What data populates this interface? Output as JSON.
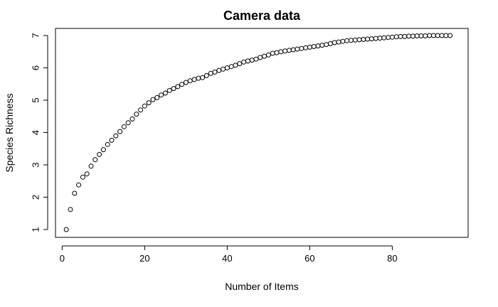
{
  "chart_data": {
    "type": "scatter",
    "title": "Camera data",
    "xlabel": "Number of Items",
    "ylabel": "Species Richness",
    "xlim": [
      0,
      94
    ],
    "ylim": [
      1,
      7
    ],
    "xticks": [
      0,
      20,
      40,
      60,
      80
    ],
    "yticks": [
      1,
      2,
      3,
      4,
      5,
      6,
      7
    ],
    "grid": false,
    "marker": "open-circle",
    "marker_color": "#000000",
    "x": [
      1,
      2,
      3,
      4,
      5,
      6,
      7,
      8,
      9,
      10,
      11,
      12,
      13,
      14,
      15,
      16,
      17,
      18,
      19,
      20,
      21,
      22,
      23,
      24,
      25,
      26,
      27,
      28,
      29,
      30,
      31,
      32,
      33,
      34,
      35,
      36,
      37,
      38,
      39,
      40,
      41,
      42,
      43,
      44,
      45,
      46,
      47,
      48,
      49,
      50,
      51,
      52,
      53,
      54,
      55,
      56,
      57,
      58,
      59,
      60,
      61,
      62,
      63,
      64,
      65,
      66,
      67,
      68,
      69,
      70,
      71,
      72,
      73,
      74,
      75,
      76,
      77,
      78,
      79,
      80,
      81,
      82,
      83,
      84,
      85,
      86,
      87,
      88,
      89,
      90,
      91,
      92,
      93,
      94
    ],
    "y": [
      1.0,
      1.62,
      2.12,
      2.38,
      2.62,
      2.72,
      2.96,
      3.16,
      3.32,
      3.47,
      3.63,
      3.76,
      3.9,
      4.03,
      4.18,
      4.3,
      4.42,
      4.57,
      4.7,
      4.82,
      4.92,
      5.02,
      5.08,
      5.16,
      5.22,
      5.3,
      5.36,
      5.42,
      5.49,
      5.55,
      5.6,
      5.64,
      5.68,
      5.7,
      5.76,
      5.83,
      5.87,
      5.92,
      5.96,
      6.0,
      6.04,
      6.08,
      6.13,
      6.18,
      6.21,
      6.24,
      6.27,
      6.32,
      6.36,
      6.4,
      6.45,
      6.47,
      6.5,
      6.52,
      6.54,
      6.56,
      6.58,
      6.6,
      6.62,
      6.64,
      6.66,
      6.68,
      6.7,
      6.72,
      6.75,
      6.78,
      6.8,
      6.82,
      6.84,
      6.85,
      6.86,
      6.87,
      6.88,
      6.89,
      6.9,
      6.91,
      6.92,
      6.93,
      6.94,
      6.95,
      6.96,
      6.97,
      6.97,
      6.98,
      6.98,
      6.99,
      6.99,
      6.99,
      7.0,
      7.0,
      7.0,
      7.0,
      7.0,
      7.0
    ]
  }
}
